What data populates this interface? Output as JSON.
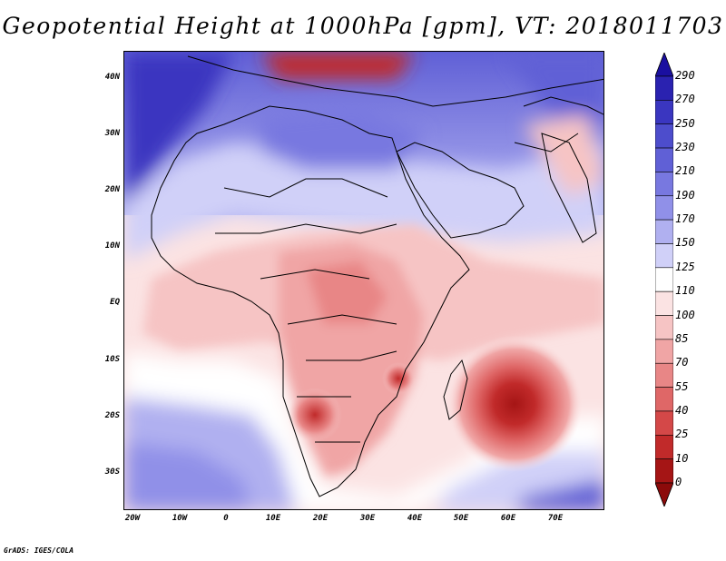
{
  "title": "Geopotential Height at 1000hPa [gpm], VT: 2018011703",
  "lat_labels": [
    "40N",
    "30N",
    "20N",
    "10N",
    "EQ",
    "10S",
    "20S",
    "30S"
  ],
  "lon_labels": [
    "20W",
    "10W",
    "0",
    "10E",
    "20E",
    "30E",
    "40E",
    "50E",
    "60E",
    "70E"
  ],
  "colorbar": {
    "levels": [
      "290",
      "270",
      "250",
      "230",
      "210",
      "190",
      "170",
      "150",
      "125",
      "110",
      "100",
      "85",
      "70",
      "55",
      "40",
      "25",
      "10",
      "0"
    ],
    "colors": [
      "#1a0fa0",
      "#2a22b0",
      "#3a36c0",
      "#4d4dcc",
      "#6060d6",
      "#7878e0",
      "#9090e8",
      "#b0b0f0",
      "#d0d0f8",
      "#ffffff",
      "#fbe3e3",
      "#f6c4c4",
      "#f0a5a5",
      "#e88686",
      "#df6767",
      "#d44848",
      "#c12a2a",
      "#a51515",
      "#8c0a0a"
    ]
  },
  "credit": "GrADS: IGES/COLA"
}
